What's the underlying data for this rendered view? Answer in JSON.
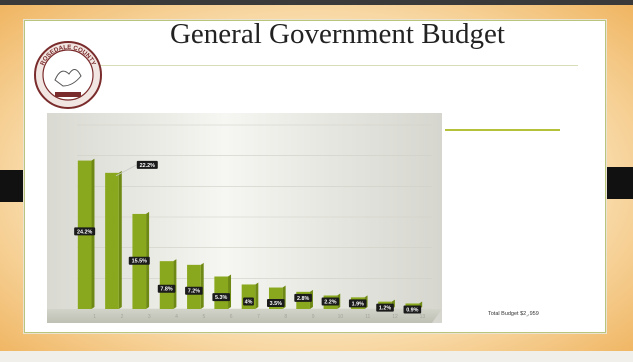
{
  "slide": {
    "title": "General Government Budget",
    "seal_text_top": "ROSEDALE COUNTY",
    "seal_text_bottom": "",
    "total_label": "Total Budget $2¸,959"
  },
  "legend": {
    "items": [
      "",
      "",
      "",
      "",
      "",
      "",
      "",
      "",
      "",
      "",
      "",
      "",
      "",
      "",
      ""
    ]
  },
  "colors": {
    "bar": "#8aa81e",
    "bar_side": "#6f8a14",
    "label_bg": "#1b1b1b",
    "grid": "#cfd0c5",
    "frame": "#efb35e",
    "accent_rule": "#b6c13a"
  },
  "chart_data": {
    "type": "bar",
    "categories": [
      "1",
      "2",
      "3",
      "4",
      "5",
      "6",
      "7",
      "8",
      "9",
      "10",
      "11",
      "12",
      "13"
    ],
    "values": [
      24.2,
      22.2,
      15.5,
      7.8,
      7.2,
      5.3,
      4.0,
      3.5,
      2.8,
      2.2,
      1.9,
      1.2,
      0.9
    ],
    "data_labels": [
      "24.2%",
      "22.2%",
      "15.5%",
      "7.8%",
      "7.2%",
      "5.3%",
      "4%",
      "3.5%",
      "2.8%",
      "2.2%",
      "1.9%",
      "1.2%",
      "0.9%"
    ],
    "ylim": [
      0,
      30
    ],
    "yticks": [
      0,
      5,
      10,
      15,
      20,
      25,
      30
    ],
    "ytick_labels": [
      "",
      "",
      "",
      "",
      "",
      "",
      ""
    ],
    "grid": true,
    "title": "",
    "xlabel": "",
    "ylabel": ""
  }
}
